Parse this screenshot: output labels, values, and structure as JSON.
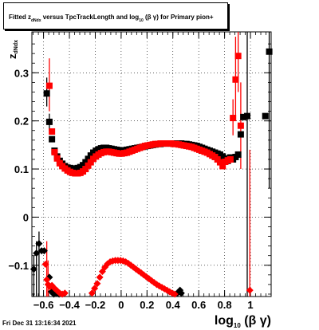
{
  "chart_data": {
    "type": "scatter",
    "title_parts": {
      "pre": "Fitted  z",
      "sub": "dNdx",
      "mid": "  versus TpcTrackLength and log",
      "sub2": "10",
      "post": " (β  γ) for Primary pion+"
    },
    "ylabel_parts": {
      "main": "z",
      "sub": "dNdx"
    },
    "xlabel_parts": {
      "main": "log",
      "sub": "10",
      "post": " (β γ)"
    },
    "datestamp": "Fri Dec 31 13:16:34 2021",
    "xlim": [
      -0.69,
      1.16
    ],
    "ylim": [
      -0.165,
      0.385
    ],
    "xticks": [
      -0.6,
      -0.4,
      -0.2,
      0,
      0.2,
      0.4,
      0.6,
      0.8,
      1
    ],
    "xtick_labels": [
      "−0.6",
      "−0.4",
      "−0.2",
      "0",
      "0.2",
      "0.4",
      "0.6",
      "0.8",
      "1"
    ],
    "yticks": [
      -0.1,
      0,
      0.1,
      0.2,
      0.3
    ],
    "ytick_labels": [
      "−0.1",
      "0",
      "0.1",
      "0.2",
      "0.3"
    ],
    "grid": true,
    "colors": {
      "black_series": "#000000",
      "red_series": "#ff0000"
    },
    "series": [
      {
        "color": "#000000",
        "marker": "square",
        "points": [
          [
            -0.575,
            0.257
          ],
          [
            -0.555,
            0.198
          ],
          [
            -0.535,
            0.162
          ],
          [
            -0.515,
            0.138
          ],
          [
            -0.495,
            0.126
          ],
          [
            -0.475,
            0.117
          ],
          [
            -0.455,
            0.111
          ],
          [
            -0.435,
            0.106
          ],
          [
            -0.415,
            0.103
          ],
          [
            -0.395,
            0.102
          ],
          [
            -0.375,
            0.101
          ],
          [
            -0.355,
            0.101
          ],
          [
            -0.335,
            0.102
          ],
          [
            -0.315,
            0.104
          ],
          [
            -0.295,
            0.108
          ],
          [
            -0.275,
            0.114
          ],
          [
            -0.255,
            0.121
          ],
          [
            -0.235,
            0.128
          ],
          [
            -0.215,
            0.134
          ],
          [
            -0.195,
            0.138
          ],
          [
            -0.175,
            0.141
          ],
          [
            -0.155,
            0.143
          ],
          [
            -0.135,
            0.144
          ],
          [
            -0.115,
            0.144
          ],
          [
            -0.095,
            0.143
          ],
          [
            -0.075,
            0.142
          ],
          [
            -0.055,
            0.141
          ],
          [
            -0.035,
            0.14
          ],
          [
            -0.015,
            0.139
          ],
          [
            0.005,
            0.139
          ],
          [
            0.025,
            0.139
          ],
          [
            0.045,
            0.14
          ],
          [
            0.065,
            0.141
          ],
          [
            0.085,
            0.142
          ],
          [
            0.105,
            0.143
          ],
          [
            0.125,
            0.144
          ],
          [
            0.145,
            0.145
          ],
          [
            0.165,
            0.146
          ],
          [
            0.185,
            0.147
          ],
          [
            0.205,
            0.148
          ],
          [
            0.225,
            0.149
          ],
          [
            0.245,
            0.15
          ],
          [
            0.265,
            0.151
          ],
          [
            0.285,
            0.152
          ],
          [
            0.305,
            0.152
          ],
          [
            0.325,
            0.153
          ],
          [
            0.345,
            0.153
          ],
          [
            0.365,
            0.153
          ],
          [
            0.385,
            0.153
          ],
          [
            0.405,
            0.153
          ],
          [
            0.425,
            0.153
          ],
          [
            0.445,
            0.153
          ],
          [
            0.465,
            0.153
          ],
          [
            0.485,
            0.152
          ],
          [
            0.505,
            0.152
          ],
          [
            0.525,
            0.151
          ],
          [
            0.545,
            0.15
          ],
          [
            0.565,
            0.149
          ],
          [
            0.585,
            0.148
          ],
          [
            0.605,
            0.146
          ],
          [
            0.625,
            0.144
          ],
          [
            0.645,
            0.142
          ],
          [
            0.665,
            0.14
          ],
          [
            0.685,
            0.138
          ],
          [
            0.705,
            0.136
          ],
          [
            0.725,
            0.134
          ],
          [
            0.745,
            0.132
          ],
          [
            0.765,
            0.13
          ],
          [
            0.785,
            0.126
          ],
          [
            0.805,
            0.122
          ],
          [
            0.825,
            0.117
          ],
          [
            0.845,
            0.124
          ],
          [
            0.865,
            0.12
          ],
          [
            0.885,
            0.125
          ],
          [
            0.905,
            0.13
          ],
          [
            0.925,
            0.172
          ],
          [
            0.945,
            0.208
          ],
          [
            0.975,
            0.21
          ],
          [
            1.115,
            0.21
          ],
          [
            1.145,
            0.344
          ]
        ]
      },
      {
        "color": "#000000",
        "marker": "diamond",
        "points": [
          [
            -0.675,
            -0.108
          ],
          [
            -0.655,
            -0.075
          ],
          [
            -0.635,
            -0.055
          ],
          [
            -0.615,
            -0.07
          ],
          [
            -0.595,
            -0.07
          ],
          [
            -0.555,
            -0.125
          ],
          [
            -0.54,
            -0.155
          ],
          [
            -0.52,
            -0.16
          ],
          [
            -0.5,
            -0.158
          ],
          [
            -0.48,
            -0.16
          ],
          [
            0.435,
            -0.158
          ],
          [
            0.445,
            -0.155
          ],
          [
            0.455,
            -0.152
          ],
          [
            0.465,
            -0.158
          ]
        ]
      },
      {
        "color": "#ff0000",
        "marker": "square",
        "points": [
          [
            -0.555,
            0.273
          ],
          [
            -0.535,
            0.178
          ],
          [
            -0.515,
            0.135
          ],
          [
            -0.495,
            0.122
          ],
          [
            -0.475,
            0.112
          ],
          [
            -0.455,
            0.106
          ],
          [
            -0.435,
            0.101
          ],
          [
            -0.415,
            0.097
          ],
          [
            -0.395,
            0.094
          ],
          [
            -0.375,
            0.092
          ],
          [
            -0.355,
            0.091
          ],
          [
            -0.335,
            0.091
          ],
          [
            -0.315,
            0.092
          ],
          [
            -0.295,
            0.095
          ],
          [
            -0.275,
            0.1
          ],
          [
            -0.255,
            0.107
          ],
          [
            -0.235,
            0.114
          ],
          [
            -0.215,
            0.121
          ],
          [
            -0.195,
            0.126
          ],
          [
            -0.175,
            0.13
          ],
          [
            -0.155,
            0.133
          ],
          [
            -0.135,
            0.135
          ],
          [
            -0.115,
            0.136
          ],
          [
            -0.095,
            0.136
          ],
          [
            -0.075,
            0.135
          ],
          [
            -0.055,
            0.134
          ],
          [
            -0.035,
            0.133
          ],
          [
            -0.015,
            0.132
          ],
          [
            0.005,
            0.132
          ],
          [
            0.025,
            0.133
          ],
          [
            0.045,
            0.134
          ],
          [
            0.065,
            0.136
          ],
          [
            0.085,
            0.138
          ],
          [
            0.105,
            0.14
          ],
          [
            0.125,
            0.142
          ],
          [
            0.145,
            0.144
          ],
          [
            0.165,
            0.146
          ],
          [
            0.185,
            0.148
          ],
          [
            0.205,
            0.149
          ],
          [
            0.225,
            0.15
          ],
          [
            0.245,
            0.151
          ],
          [
            0.265,
            0.152
          ],
          [
            0.285,
            0.152
          ],
          [
            0.305,
            0.153
          ],
          [
            0.325,
            0.153
          ],
          [
            0.345,
            0.153
          ],
          [
            0.365,
            0.153
          ],
          [
            0.385,
            0.153
          ],
          [
            0.405,
            0.152
          ],
          [
            0.425,
            0.152
          ],
          [
            0.445,
            0.151
          ],
          [
            0.465,
            0.15
          ],
          [
            0.485,
            0.149
          ],
          [
            0.505,
            0.148
          ],
          [
            0.525,
            0.147
          ],
          [
            0.545,
            0.146
          ],
          [
            0.565,
            0.144
          ],
          [
            0.585,
            0.142
          ],
          [
            0.605,
            0.14
          ],
          [
            0.625,
            0.138
          ],
          [
            0.645,
            0.136
          ],
          [
            0.665,
            0.134
          ],
          [
            0.685,
            0.131
          ],
          [
            0.705,
            0.128
          ],
          [
            0.725,
            0.125
          ],
          [
            0.745,
            0.12
          ],
          [
            0.765,
            0.114
          ],
          [
            0.785,
            0.106
          ],
          [
            0.805,
            0.115
          ],
          [
            0.825,
            0.118
          ],
          [
            0.845,
            0.12
          ],
          [
            0.865,
            0.206
          ],
          [
            0.885,
            0.286
          ],
          [
            0.905,
            0.335
          ],
          [
            0.925,
            0.19
          ]
        ]
      },
      {
        "color": "#ff0000",
        "marker": "diamond",
        "points": [
          [
            -0.585,
            -0.098
          ],
          [
            -0.575,
            -0.13
          ],
          [
            -0.565,
            -0.14
          ],
          [
            -0.55,
            -0.145
          ],
          [
            -0.535,
            -0.142
          ],
          [
            -0.515,
            -0.148
          ],
          [
            -0.495,
            -0.153
          ],
          [
            -0.475,
            -0.158
          ],
          [
            -0.455,
            -0.16
          ],
          [
            -0.435,
            -0.158
          ],
          [
            -0.225,
            -0.158
          ],
          [
            -0.205,
            -0.148
          ],
          [
            -0.185,
            -0.138
          ],
          [
            -0.165,
            -0.125
          ],
          [
            -0.145,
            -0.113
          ],
          [
            -0.125,
            -0.104
          ],
          [
            -0.105,
            -0.097
          ],
          [
            -0.085,
            -0.093
          ],
          [
            -0.065,
            -0.091
          ],
          [
            -0.045,
            -0.09
          ],
          [
            -0.025,
            -0.09
          ],
          [
            -0.005,
            -0.09
          ],
          [
            0.015,
            -0.091
          ],
          [
            0.035,
            -0.093
          ],
          [
            0.055,
            -0.096
          ],
          [
            0.075,
            -0.1
          ],
          [
            0.095,
            -0.104
          ],
          [
            0.115,
            -0.108
          ],
          [
            0.135,
            -0.112
          ],
          [
            0.155,
            -0.116
          ],
          [
            0.175,
            -0.12
          ],
          [
            0.195,
            -0.124
          ],
          [
            0.215,
            -0.128
          ],
          [
            0.235,
            -0.132
          ],
          [
            0.255,
            -0.136
          ],
          [
            0.275,
            -0.14
          ],
          [
            0.295,
            -0.143
          ],
          [
            0.315,
            -0.146
          ],
          [
            0.335,
            -0.149
          ],
          [
            0.355,
            -0.152
          ],
          [
            0.375,
            -0.155
          ],
          [
            0.395,
            -0.158
          ],
          [
            0.415,
            -0.16
          ],
          [
            0.995,
            -0.152
          ]
        ]
      }
    ]
  }
}
